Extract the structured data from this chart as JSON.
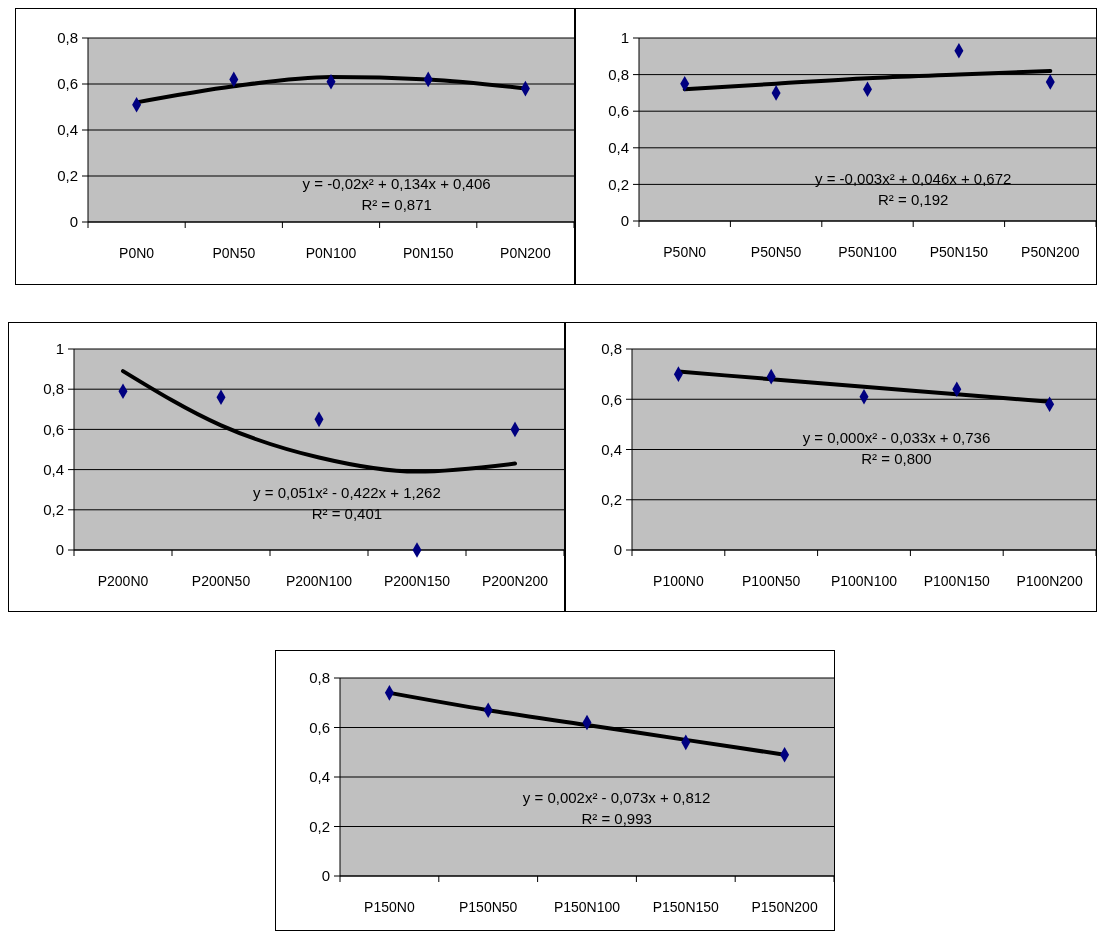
{
  "chart_data": [
    {
      "type": "scatter",
      "categories": [
        "P0N0",
        "P0N50",
        "P0N100",
        "P0N150",
        "P0N200"
      ],
      "ylim": [
        0,
        0.8
      ],
      "yticks": [
        {
          "value": 0,
          "label": "0"
        },
        {
          "value": 0.2,
          "label": "0,2"
        },
        {
          "value": 0.4,
          "label": "0,4"
        },
        {
          "value": 0.6,
          "label": "0,6"
        },
        {
          "value": 0.8,
          "label": "0,8"
        }
      ],
      "grid": "y",
      "annotations": [
        "y = -0,02x² + 0,134x + 0,406",
        "R² = 0,871"
      ],
      "series": [
        {
          "type": "scatter",
          "color": "#000080",
          "marker": "diamond",
          "values": [
            0.51,
            0.62,
            0.61,
            0.62,
            0.58
          ]
        },
        {
          "type": "line",
          "color": "#000000",
          "line_style": "solid",
          "marker": "none",
          "values": [
            0.52,
            0.59,
            0.63,
            0.62,
            0.58
          ]
        }
      ]
    },
    {
      "type": "scatter",
      "categories": [
        "P50N0",
        "P50N50",
        "P50N100",
        "P50N150",
        "P50N200"
      ],
      "ylim": [
        0,
        1
      ],
      "yticks": [
        {
          "value": 0,
          "label": "0"
        },
        {
          "value": 0.2,
          "label": "0,2"
        },
        {
          "value": 0.4,
          "label": "0,4"
        },
        {
          "value": 0.6,
          "label": "0,6"
        },
        {
          "value": 0.8,
          "label": "0,8"
        },
        {
          "value": 1,
          "label": "1"
        }
      ],
      "grid": "y",
      "annotations": [
        "y = -0,003x² + 0,046x + 0,672",
        "R² = 0,192"
      ],
      "series": [
        {
          "type": "scatter",
          "color": "#000080",
          "marker": "diamond",
          "values": [
            0.75,
            0.7,
            0.72,
            0.93,
            0.76
          ]
        },
        {
          "type": "line",
          "color": "#000000",
          "line_style": "solid",
          "marker": "none",
          "values": [
            0.72,
            0.75,
            0.78,
            0.8,
            0.82
          ]
        }
      ]
    },
    {
      "type": "scatter",
      "categories": [
        "P200N0",
        "P200N50",
        "P200N100",
        "P200N150",
        "P200N200"
      ],
      "ylim": [
        0,
        1
      ],
      "yticks": [
        {
          "value": 0,
          "label": "0"
        },
        {
          "value": 0.2,
          "label": "0,2"
        },
        {
          "value": 0.4,
          "label": "0,4"
        },
        {
          "value": 0.6,
          "label": "0,6"
        },
        {
          "value": 0.8,
          "label": "0,8"
        },
        {
          "value": 1,
          "label": "1"
        }
      ],
      "grid": "y",
      "annotations": [
        "y = 0,051x² - 0,422x + 1,262",
        "R² = 0,401"
      ],
      "series": [
        {
          "type": "scatter",
          "color": "#000080",
          "marker": "diamond",
          "values": [
            0.79,
            0.76,
            0.65,
            0,
            0.6
          ]
        },
        {
          "type": "line",
          "color": "#000000",
          "line_style": "solid",
          "marker": "none",
          "values": [
            0.89,
            0.62,
            0.46,
            0.39,
            0.43
          ]
        }
      ]
    },
    {
      "type": "scatter",
      "categories": [
        "P100N0",
        "P100N50",
        "P100N100",
        "P100N150",
        "P100N200"
      ],
      "ylim": [
        0,
        0.8
      ],
      "yticks": [
        {
          "value": 0,
          "label": "0"
        },
        {
          "value": 0.2,
          "label": "0,2"
        },
        {
          "value": 0.4,
          "label": "0,4"
        },
        {
          "value": 0.6,
          "label": "0,6"
        },
        {
          "value": 0.8,
          "label": "0,8"
        }
      ],
      "grid": "y",
      "annotations": [
        "y = 0,000x² - 0,033x + 0,736",
        "R² = 0,800"
      ],
      "series": [
        {
          "type": "scatter",
          "color": "#000080",
          "marker": "diamond",
          "values": [
            0.7,
            0.69,
            0.61,
            0.64,
            0.58
          ]
        },
        {
          "type": "line",
          "color": "#000000",
          "line_style": "solid",
          "marker": "none",
          "values": [
            0.71,
            0.68,
            0.65,
            0.62,
            0.59
          ]
        }
      ]
    },
    {
      "type": "scatter",
      "categories": [
        "P150N0",
        "P150N50",
        "P150N100",
        "P150N150",
        "P150N200"
      ],
      "ylim": [
        0,
        0.8
      ],
      "yticks": [
        {
          "value": 0,
          "label": "0"
        },
        {
          "value": 0.2,
          "label": "0,2"
        },
        {
          "value": 0.4,
          "label": "0,4"
        },
        {
          "value": 0.6,
          "label": "0,6"
        },
        {
          "value": 0.8,
          "label": "0,8"
        }
      ],
      "grid": "y",
      "annotations": [
        "y = 0,002x² - 0,073x + 0,812",
        "R² = 0,993"
      ],
      "series": [
        {
          "type": "scatter",
          "color": "#000080",
          "marker": "diamond",
          "values": [
            0.74,
            0.67,
            0.62,
            0.54,
            0.49
          ]
        },
        {
          "type": "line",
          "color": "#000000",
          "line_style": "solid",
          "marker": "none",
          "values": [
            0.74,
            0.67,
            0.61,
            0.55,
            0.49
          ]
        }
      ]
    }
  ]
}
